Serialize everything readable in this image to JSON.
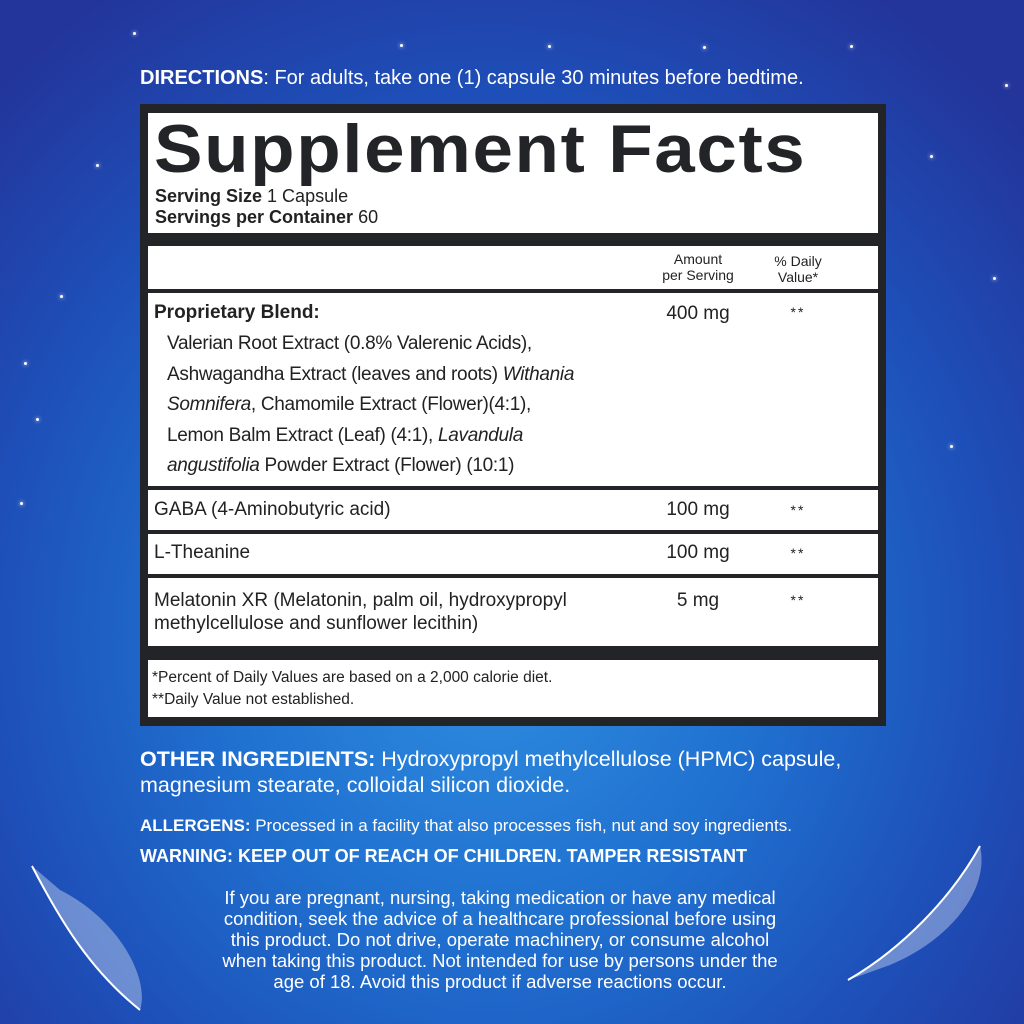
{
  "directions": {
    "label": "DIRECTIONS",
    "text": ": For adults, take one (1) capsule 30 minutes before bedtime."
  },
  "facts": {
    "title": "Supplement Facts",
    "serving_size_label": "Serving Size",
    "serving_size": " 1 Capsule",
    "servings_label": "Servings per Container",
    "servings": " 60",
    "col_amount": [
      "Amount",
      "per Serving"
    ],
    "col_dv": [
      "% Daily",
      "Value*"
    ],
    "blend": {
      "name": "Proprietary Blend:",
      "amount": "400 mg",
      "dv": "**",
      "lines": [
        [
          {
            "text": "Valerian Root Extract (0.8% Valerenic Acids),"
          }
        ],
        [
          {
            "text": "Ashwagandha Extract (leaves and roots) "
          },
          {
            "text": "Withania",
            "italic": true
          }
        ],
        [
          {
            "text": "Somnifera",
            "italic": true
          },
          {
            "text": ", Chamomile Extract (Flower)(4:1),"
          }
        ],
        [
          {
            "text": "Lemon Balm Extract (Leaf) (4:1), "
          },
          {
            "text": "Lavandula",
            "italic": true
          }
        ],
        [
          {
            "text": "angustifolia",
            "italic": true
          },
          {
            "text": " Powder Extract (Flower) (10:1)"
          }
        ]
      ]
    },
    "rows": [
      {
        "name": "GABA (4-Aminobutyric acid)",
        "amount": "100 mg",
        "dv": "**"
      },
      {
        "name": "L-Theanine",
        "amount": "100 mg",
        "dv": "**"
      },
      {
        "name": "Melatonin XR (Melatonin, palm oil, hydroxypropyl",
        "name2": "methylcellulose and sunflower lecithin)",
        "amount": "5 mg",
        "dv": "**"
      }
    ],
    "footnotes": [
      "*Percent of Daily Values are based on a 2,000 calorie diet.",
      "**Daily Value not established."
    ]
  },
  "other_ingredients": {
    "label": "OTHER INGREDIENTS:",
    "text": " Hydroxypropyl methylcellulose (HPMC) capsule,",
    "text2": "magnesium stearate, colloidal silicon dioxide."
  },
  "allergens": {
    "label": "ALLERGENS:",
    "text": " Processed in a facility that also processes fish, nut and soy ingredients."
  },
  "warning": "WARNING: KEEP OUT OF REACH OF CHILDREN. TAMPER RESISTANT",
  "caution": [
    "If you are pregnant, nursing, taking medication or have any medical",
    "condition, seek the advice of a healthcare professional before using",
    "this product. Do not drive, operate machinery, or consume alcohol",
    "when taking this product. Not intended for use by persons under the",
    "age of 18. Avoid this product if adverse reactions occur."
  ],
  "colors": {
    "background": "#1f6fcf",
    "label_frame": "#232427",
    "text": "#ffffff"
  }
}
